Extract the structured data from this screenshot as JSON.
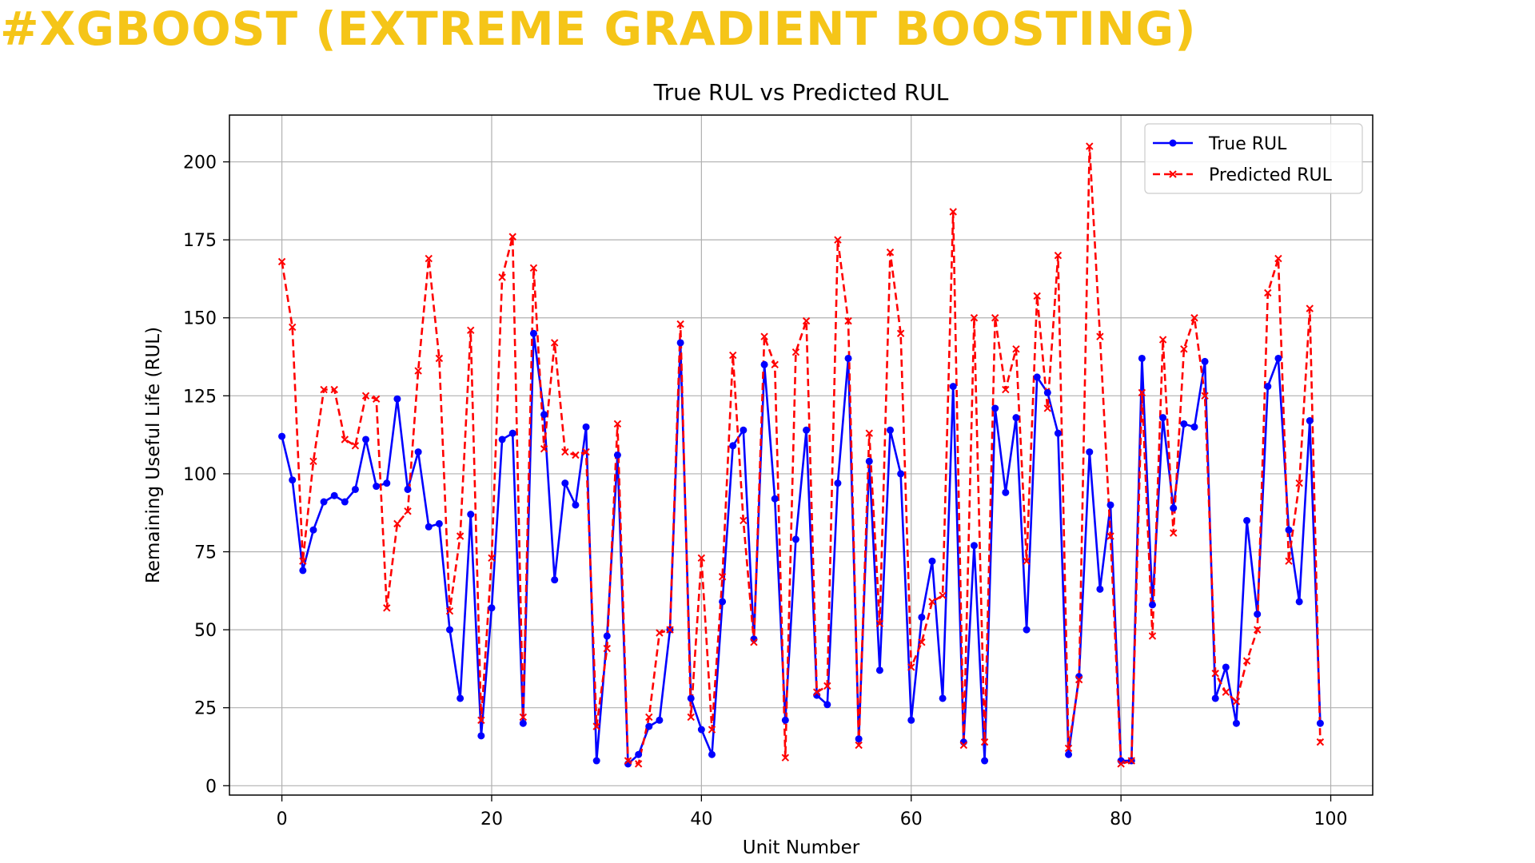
{
  "page": {
    "title": "#XGBOOST (EXTREME GRADIENT BOOSTING)",
    "title_color": "#f5c518"
  },
  "chart_data": {
    "type": "line",
    "title": "True RUL vs Predicted RUL",
    "xlabel": "Unit Number",
    "ylabel": "Remaining Useful Life (RUL)",
    "xlim": [
      -5,
      104
    ],
    "ylim": [
      -3,
      215
    ],
    "xticks": [
      0,
      20,
      40,
      60,
      80,
      100
    ],
    "yticks": [
      0,
      25,
      50,
      75,
      100,
      125,
      150,
      175,
      200
    ],
    "grid": true,
    "legend_position": "top-right",
    "x": [
      0,
      1,
      2,
      3,
      4,
      5,
      6,
      7,
      8,
      9,
      10,
      11,
      12,
      13,
      14,
      15,
      16,
      17,
      18,
      19,
      20,
      21,
      22,
      23,
      24,
      25,
      26,
      27,
      28,
      29,
      30,
      31,
      32,
      33,
      34,
      35,
      36,
      37,
      38,
      39,
      40,
      41,
      42,
      43,
      44,
      45,
      46,
      47,
      48,
      49,
      50,
      51,
      52,
      53,
      54,
      55,
      56,
      57,
      58,
      59,
      60,
      61,
      62,
      63,
      64,
      65,
      66,
      67,
      68,
      69,
      70,
      71,
      72,
      73,
      74,
      75,
      76,
      77,
      78,
      79,
      80,
      81,
      82,
      83,
      84,
      85,
      86,
      87,
      88,
      89,
      90,
      91,
      92,
      93,
      94,
      95,
      96,
      97,
      98,
      99
    ],
    "series": [
      {
        "name": "True RUL",
        "color": "#0000ff",
        "style": "solid",
        "marker": "circle",
        "values": [
          112,
          98,
          69,
          82,
          91,
          93,
          91,
          95,
          111,
          96,
          97,
          124,
          95,
          107,
          83,
          84,
          50,
          28,
          87,
          16,
          57,
          111,
          113,
          20,
          145,
          119,
          66,
          97,
          90,
          115,
          8,
          48,
          106,
          7,
          10,
          19,
          21,
          50,
          142,
          28,
          18,
          10,
          59,
          109,
          114,
          47,
          135,
          92,
          21,
          79,
          114,
          29,
          26,
          97,
          137,
          15,
          104,
          37,
          114,
          100,
          21,
          54,
          72,
          28,
          128,
          14,
          77,
          8,
          121,
          94,
          118,
          50,
          131,
          126,
          113,
          10,
          35,
          107,
          63,
          90,
          8,
          8,
          137,
          58,
          118,
          89,
          116,
          115,
          136,
          28,
          38,
          20,
          85,
          55,
          128,
          137,
          82,
          59,
          117,
          20
        ]
      },
      {
        "name": "Predicted RUL",
        "color": "#ff0000",
        "style": "dashed",
        "marker": "x",
        "values": [
          168,
          147,
          72,
          104,
          127,
          127,
          111,
          109,
          125,
          124,
          57,
          84,
          88,
          133,
          169,
          137,
          56,
          80,
          146,
          21,
          73,
          163,
          176,
          22,
          166,
          108,
          142,
          107,
          106,
          107,
          19,
          44,
          116,
          8,
          7,
          22,
          49,
          50,
          148,
          22,
          73,
          18,
          67,
          138,
          85,
          46,
          144,
          135,
          9,
          139,
          149,
          30,
          32,
          175,
          149,
          13,
          113,
          52,
          171,
          145,
          38,
          46,
          59,
          61,
          184,
          13,
          150,
          14,
          150,
          127,
          140,
          72,
          157,
          121,
          170,
          12,
          34,
          205,
          144,
          80,
          7,
          8,
          126,
          48,
          143,
          81,
          140,
          150,
          125,
          36,
          30,
          27,
          40,
          50,
          158,
          169,
          72,
          97,
          153,
          14
        ]
      }
    ]
  }
}
